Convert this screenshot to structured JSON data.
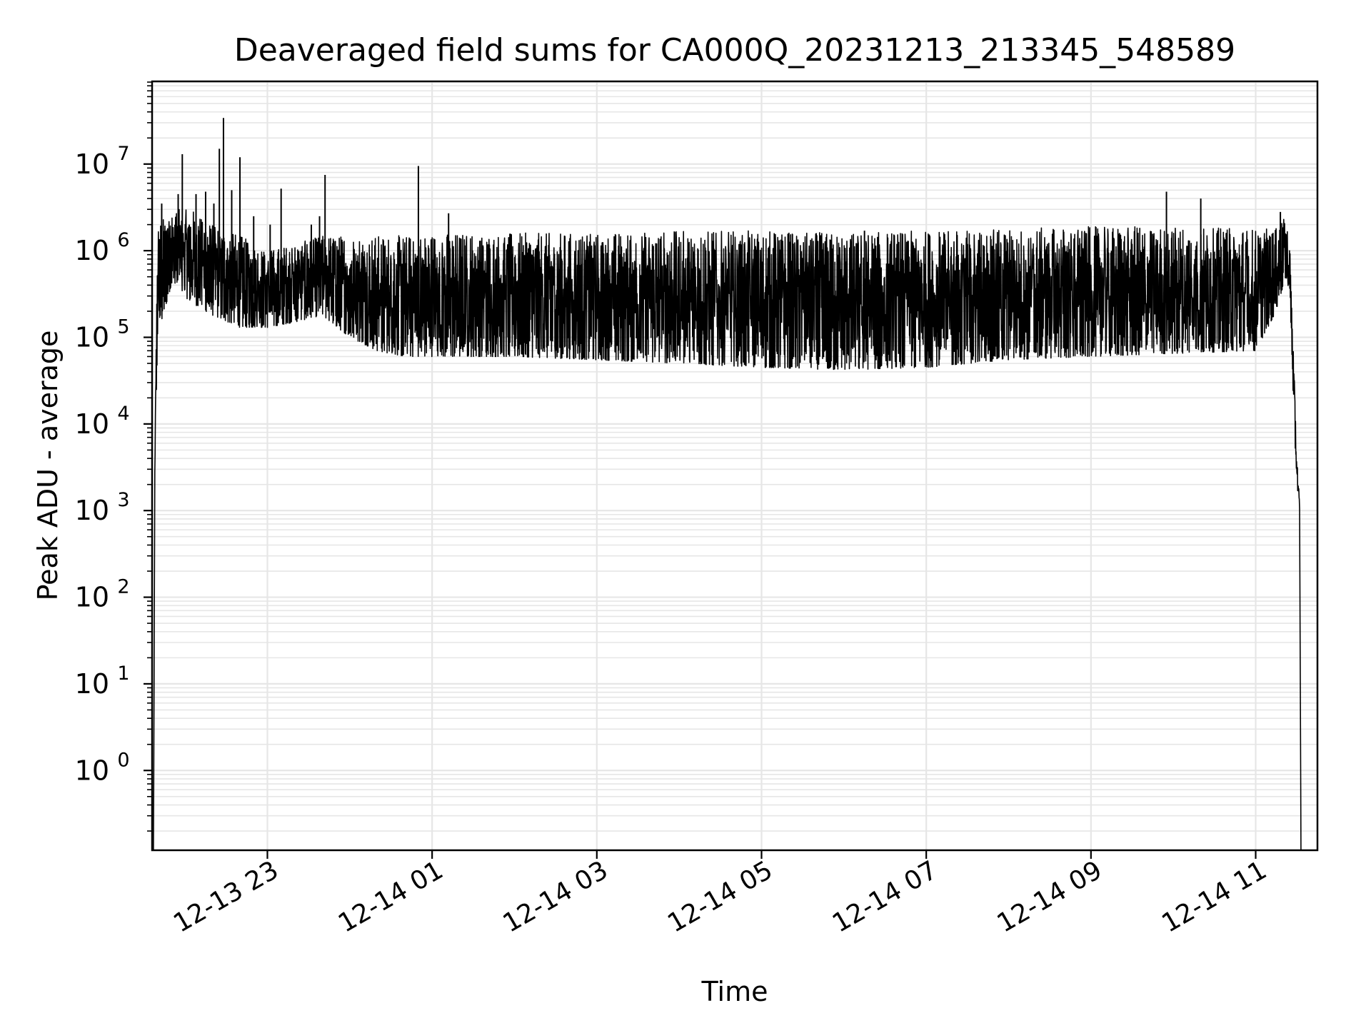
{
  "chart_data": {
    "type": "line",
    "title": "Deaveraged field sums for CA000Q_20231213_213345_548589",
    "xlabel": "Time",
    "ylabel": "Peak ADU - average",
    "yscale": "log",
    "grid": true,
    "grid_color": "#e6e6e6",
    "line_color": "#000000",
    "xlim": [
      "2023-12-13 21:36",
      "2023-12-14 11:45"
    ],
    "ylim": [
      0.12,
      90000000
    ],
    "x_ticks": [
      {
        "value": "2023-12-13 23:00",
        "label": "12-13 23"
      },
      {
        "value": "2023-12-14 01:00",
        "label": "12-14 01"
      },
      {
        "value": "2023-12-14 03:00",
        "label": "12-14 03"
      },
      {
        "value": "2023-12-14 05:00",
        "label": "12-14 05"
      },
      {
        "value": "2023-12-14 07:00",
        "label": "12-14 07"
      },
      {
        "value": "2023-12-14 09:00",
        "label": "12-14 09"
      },
      {
        "value": "2023-12-14 11:00",
        "label": "12-14 11"
      }
    ],
    "y_ticks": [
      {
        "value": 1,
        "base": "10",
        "exp": "0"
      },
      {
        "value": 10,
        "base": "10",
        "exp": "1"
      },
      {
        "value": 100,
        "base": "10",
        "exp": "2"
      },
      {
        "value": 1000,
        "base": "10",
        "exp": "3"
      },
      {
        "value": 10000,
        "base": "10",
        "exp": "4"
      },
      {
        "value": 100000,
        "base": "10",
        "exp": "5"
      },
      {
        "value": 1000000,
        "base": "10",
        "exp": "6"
      },
      {
        "value": 10000000,
        "base": "10",
        "exp": "7"
      }
    ],
    "envelope": [
      {
        "t": "2023-12-13 21:37",
        "low": 0.1,
        "high": 0.1
      },
      {
        "t": "2023-12-13 21:38",
        "low": 2000,
        "high": 5000
      },
      {
        "t": "2023-12-13 21:40",
        "low": 100000,
        "high": 2000000
      },
      {
        "t": "2023-12-13 21:50",
        "low": 400000,
        "high": 3000000
      },
      {
        "t": "2023-12-13 22:05",
        "low": 250000,
        "high": 3000000
      },
      {
        "t": "2023-12-13 22:20",
        "low": 180000,
        "high": 2000000
      },
      {
        "t": "2023-12-13 22:40",
        "low": 130000,
        "high": 1500000
      },
      {
        "t": "2023-12-13 23:00",
        "low": 130000,
        "high": 1000000
      },
      {
        "t": "2023-12-13 23:20",
        "low": 150000,
        "high": 1200000
      },
      {
        "t": "2023-12-13 23:40",
        "low": 180000,
        "high": 1500000
      },
      {
        "t": "2023-12-14 00:00",
        "low": 100000,
        "high": 1500000
      },
      {
        "t": "2023-12-14 00:20",
        "low": 70000,
        "high": 1500000
      },
      {
        "t": "2023-12-14 00:40",
        "low": 60000,
        "high": 1500000
      },
      {
        "t": "2023-12-14 01:00",
        "low": 60000,
        "high": 1600000
      },
      {
        "t": "2023-12-14 02:00",
        "low": 60000,
        "high": 1600000
      },
      {
        "t": "2023-12-14 03:00",
        "low": 55000,
        "high": 1600000
      },
      {
        "t": "2023-12-14 04:00",
        "low": 50000,
        "high": 1700000
      },
      {
        "t": "2023-12-14 05:00",
        "low": 45000,
        "high": 1700000
      },
      {
        "t": "2023-12-14 06:00",
        "low": 42000,
        "high": 1600000
      },
      {
        "t": "2023-12-14 07:00",
        "low": 45000,
        "high": 1700000
      },
      {
        "t": "2023-12-14 08:00",
        "low": 55000,
        "high": 1800000
      },
      {
        "t": "2023-12-14 09:00",
        "low": 60000,
        "high": 1900000
      },
      {
        "t": "2023-12-14 10:00",
        "low": 65000,
        "high": 1900000
      },
      {
        "t": "2023-12-14 11:00",
        "low": 70000,
        "high": 1800000
      },
      {
        "t": "2023-12-14 11:15",
        "low": 200000,
        "high": 1800000
      },
      {
        "t": "2023-12-14 11:22",
        "low": 500000,
        "high": 2500000
      },
      {
        "t": "2023-12-14 11:25",
        "low": 300000,
        "high": 1000000
      },
      {
        "t": "2023-12-14 11:28",
        "low": 10000,
        "high": 40000
      },
      {
        "t": "2023-12-14 11:30",
        "low": 2000,
        "high": 5000
      },
      {
        "t": "2023-12-14 11:32",
        "low": 1000,
        "high": 1200
      },
      {
        "t": "2023-12-14 11:33",
        "low": 0.1,
        "high": 0.1
      }
    ],
    "spikes": [
      {
        "t": "2023-12-13 21:43",
        "value": 3500000
      },
      {
        "t": "2023-12-13 21:55",
        "value": 4500000
      },
      {
        "t": "2023-12-13 21:58",
        "value": 13000000
      },
      {
        "t": "2023-12-13 22:08",
        "value": 4500000
      },
      {
        "t": "2023-12-13 22:15",
        "value": 4800000
      },
      {
        "t": "2023-12-13 22:21",
        "value": 3500000
      },
      {
        "t": "2023-12-13 22:25",
        "value": 15000000
      },
      {
        "t": "2023-12-13 22:28",
        "value": 34000000
      },
      {
        "t": "2023-12-13 22:34",
        "value": 5000000
      },
      {
        "t": "2023-12-13 22:40",
        "value": 12000000
      },
      {
        "t": "2023-12-13 22:50",
        "value": 2500000
      },
      {
        "t": "2023-12-13 23:02",
        "value": 2000000
      },
      {
        "t": "2023-12-13 23:10",
        "value": 5200000
      },
      {
        "t": "2023-12-13 23:32",
        "value": 2000000
      },
      {
        "t": "2023-12-13 23:38",
        "value": 2500000
      },
      {
        "t": "2023-12-13 23:42",
        "value": 7500000
      },
      {
        "t": "2023-12-14 00:50",
        "value": 9500000
      },
      {
        "t": "2023-12-14 01:12",
        "value": 2700000
      },
      {
        "t": "2023-12-14 06:15",
        "value": 1700000
      },
      {
        "t": "2023-12-14 09:55",
        "value": 4800000
      },
      {
        "t": "2023-12-14 10:20",
        "value": 4000000
      },
      {
        "t": "2023-12-14 11:18",
        "value": 2800000
      }
    ]
  }
}
